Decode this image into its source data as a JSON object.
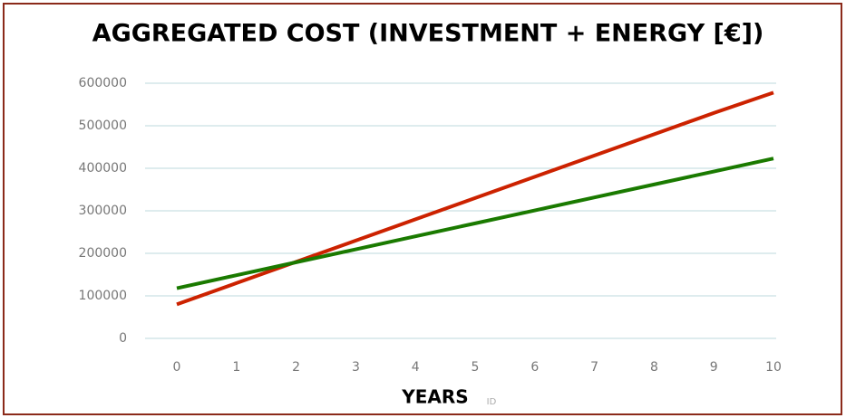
{
  "chart_data": {
    "type": "line",
    "title": "AGGREGATED COST (INVESTMENT + ENERGY [€])",
    "x_label": "YEARS",
    "annotation": "ID",
    "x": [
      0,
      1,
      2,
      3,
      4,
      5,
      6,
      7,
      8,
      9,
      10
    ],
    "series": [
      {
        "color": "#cc2200",
        "values": [
          80000,
          130000,
          180000,
          230000,
          280000,
          330000,
          380000,
          430000,
          480000,
          530000,
          578000
        ]
      },
      {
        "color": "#1a7a00",
        "values": [
          118000,
          148500,
          179000,
          209500,
          240000,
          270500,
          301000,
          331500,
          362000,
          392500,
          423000
        ]
      }
    ],
    "xlim": [
      0,
      10
    ],
    "xticks": [
      0,
      1,
      2,
      3,
      4,
      5,
      6,
      7,
      8,
      9,
      10
    ],
    "ylim": [
      0,
      600000
    ],
    "yticks": [
      0,
      100000,
      200000,
      300000,
      400000,
      500000,
      600000
    ],
    "grid": true
  }
}
